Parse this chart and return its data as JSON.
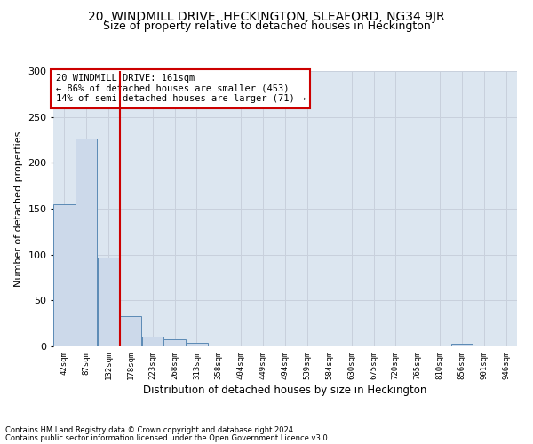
{
  "title": "20, WINDMILL DRIVE, HECKINGTON, SLEAFORD, NG34 9JR",
  "subtitle": "Size of property relative to detached houses in Heckington",
  "xlabel": "Distribution of detached houses by size in Heckington",
  "ylabel": "Number of detached properties",
  "bar_color": "#ccd9ea",
  "bar_edge_color": "#5b8ab5",
  "grid_color": "#c8d0dc",
  "background_color": "#dce6f0",
  "annotation_box_color": "#ffffff",
  "annotation_border_color": "#cc0000",
  "vline_color": "#cc0000",
  "bins": [
    42,
    87,
    132,
    178,
    223,
    268,
    313,
    358,
    404,
    449,
    494,
    539,
    584,
    630,
    675,
    720,
    765,
    810,
    856,
    901,
    946
  ],
  "bin_labels": [
    "42sqm",
    "87sqm",
    "132sqm",
    "178sqm",
    "223sqm",
    "268sqm",
    "313sqm",
    "358sqm",
    "404sqm",
    "449sqm",
    "494sqm",
    "539sqm",
    "584sqm",
    "630sqm",
    "675sqm",
    "720sqm",
    "765sqm",
    "810sqm",
    "856sqm",
    "901sqm",
    "946sqm"
  ],
  "values": [
    155,
    226,
    97,
    33,
    11,
    8,
    4,
    0,
    0,
    0,
    0,
    0,
    0,
    0,
    0,
    0,
    0,
    0,
    3,
    0,
    0
  ],
  "ylim": [
    0,
    300
  ],
  "yticks": [
    0,
    50,
    100,
    150,
    200,
    250,
    300
  ],
  "annotation_line1": "20 WINDMILL DRIVE: 161sqm",
  "annotation_line2": "← 86% of detached houses are smaller (453)",
  "annotation_line3": "14% of semi-detached houses are larger (71) →",
  "footnote1": "Contains HM Land Registry data © Crown copyright and database right 2024.",
  "footnote2": "Contains public sector information licensed under the Open Government Licence v3.0.",
  "title_fontsize": 10,
  "subtitle_fontsize": 9,
  "xlabel_fontsize": 8.5,
  "ylabel_fontsize": 8,
  "ytick_fontsize": 8,
  "xtick_fontsize": 6.5,
  "annot_fontsize": 7.5,
  "footnote_fontsize": 6
}
